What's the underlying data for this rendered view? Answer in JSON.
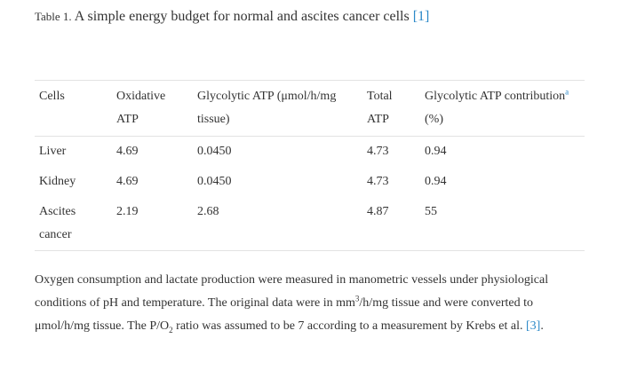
{
  "caption": {
    "label": "Table 1.",
    "title": " A simple energy budget for normal and ascites cancer cells ",
    "ref": "[1]"
  },
  "table": {
    "headers": {
      "cells": "Cells",
      "oxidative": "Oxidative ATP",
      "glycolytic": "Glycolytic ATP (μmol/h/mg tissue)",
      "total": "Total ATP",
      "contribution": "Glycolytic ATP contribution",
      "contribution_marker": "a",
      "contribution_unit": "(%)"
    },
    "rows": [
      {
        "cells": "Liver",
        "oxidative": "4.69",
        "glycolytic": "0.0450",
        "total": "4.73",
        "contribution": "0.94"
      },
      {
        "cells": "Kidney",
        "oxidative": "4.69",
        "glycolytic": "0.0450",
        "total": "4.73",
        "contribution": "0.94"
      },
      {
        "cells": "Ascites cancer",
        "oxidative": "2.19",
        "glycolytic": "2.68",
        "total": "4.87",
        "contribution": "55"
      }
    ]
  },
  "footnote": {
    "part1": "Oxygen consumption and lactate production were measured in manometric vessels under physiological conditions of pH and temperature. The original data were in mm",
    "sup3": "3",
    "part2": "/h/mg tissue and were converted to μmol/h/mg tissue. The P/O",
    "sub2": "2",
    "part3": " ratio was assumed to be 7 according to a measurement by Krebs et al. ",
    "ref": "[3]",
    "end": "."
  },
  "colors": {
    "text": "#333333",
    "link": "#2a88c8",
    "rule": "#e2e2e2"
  }
}
